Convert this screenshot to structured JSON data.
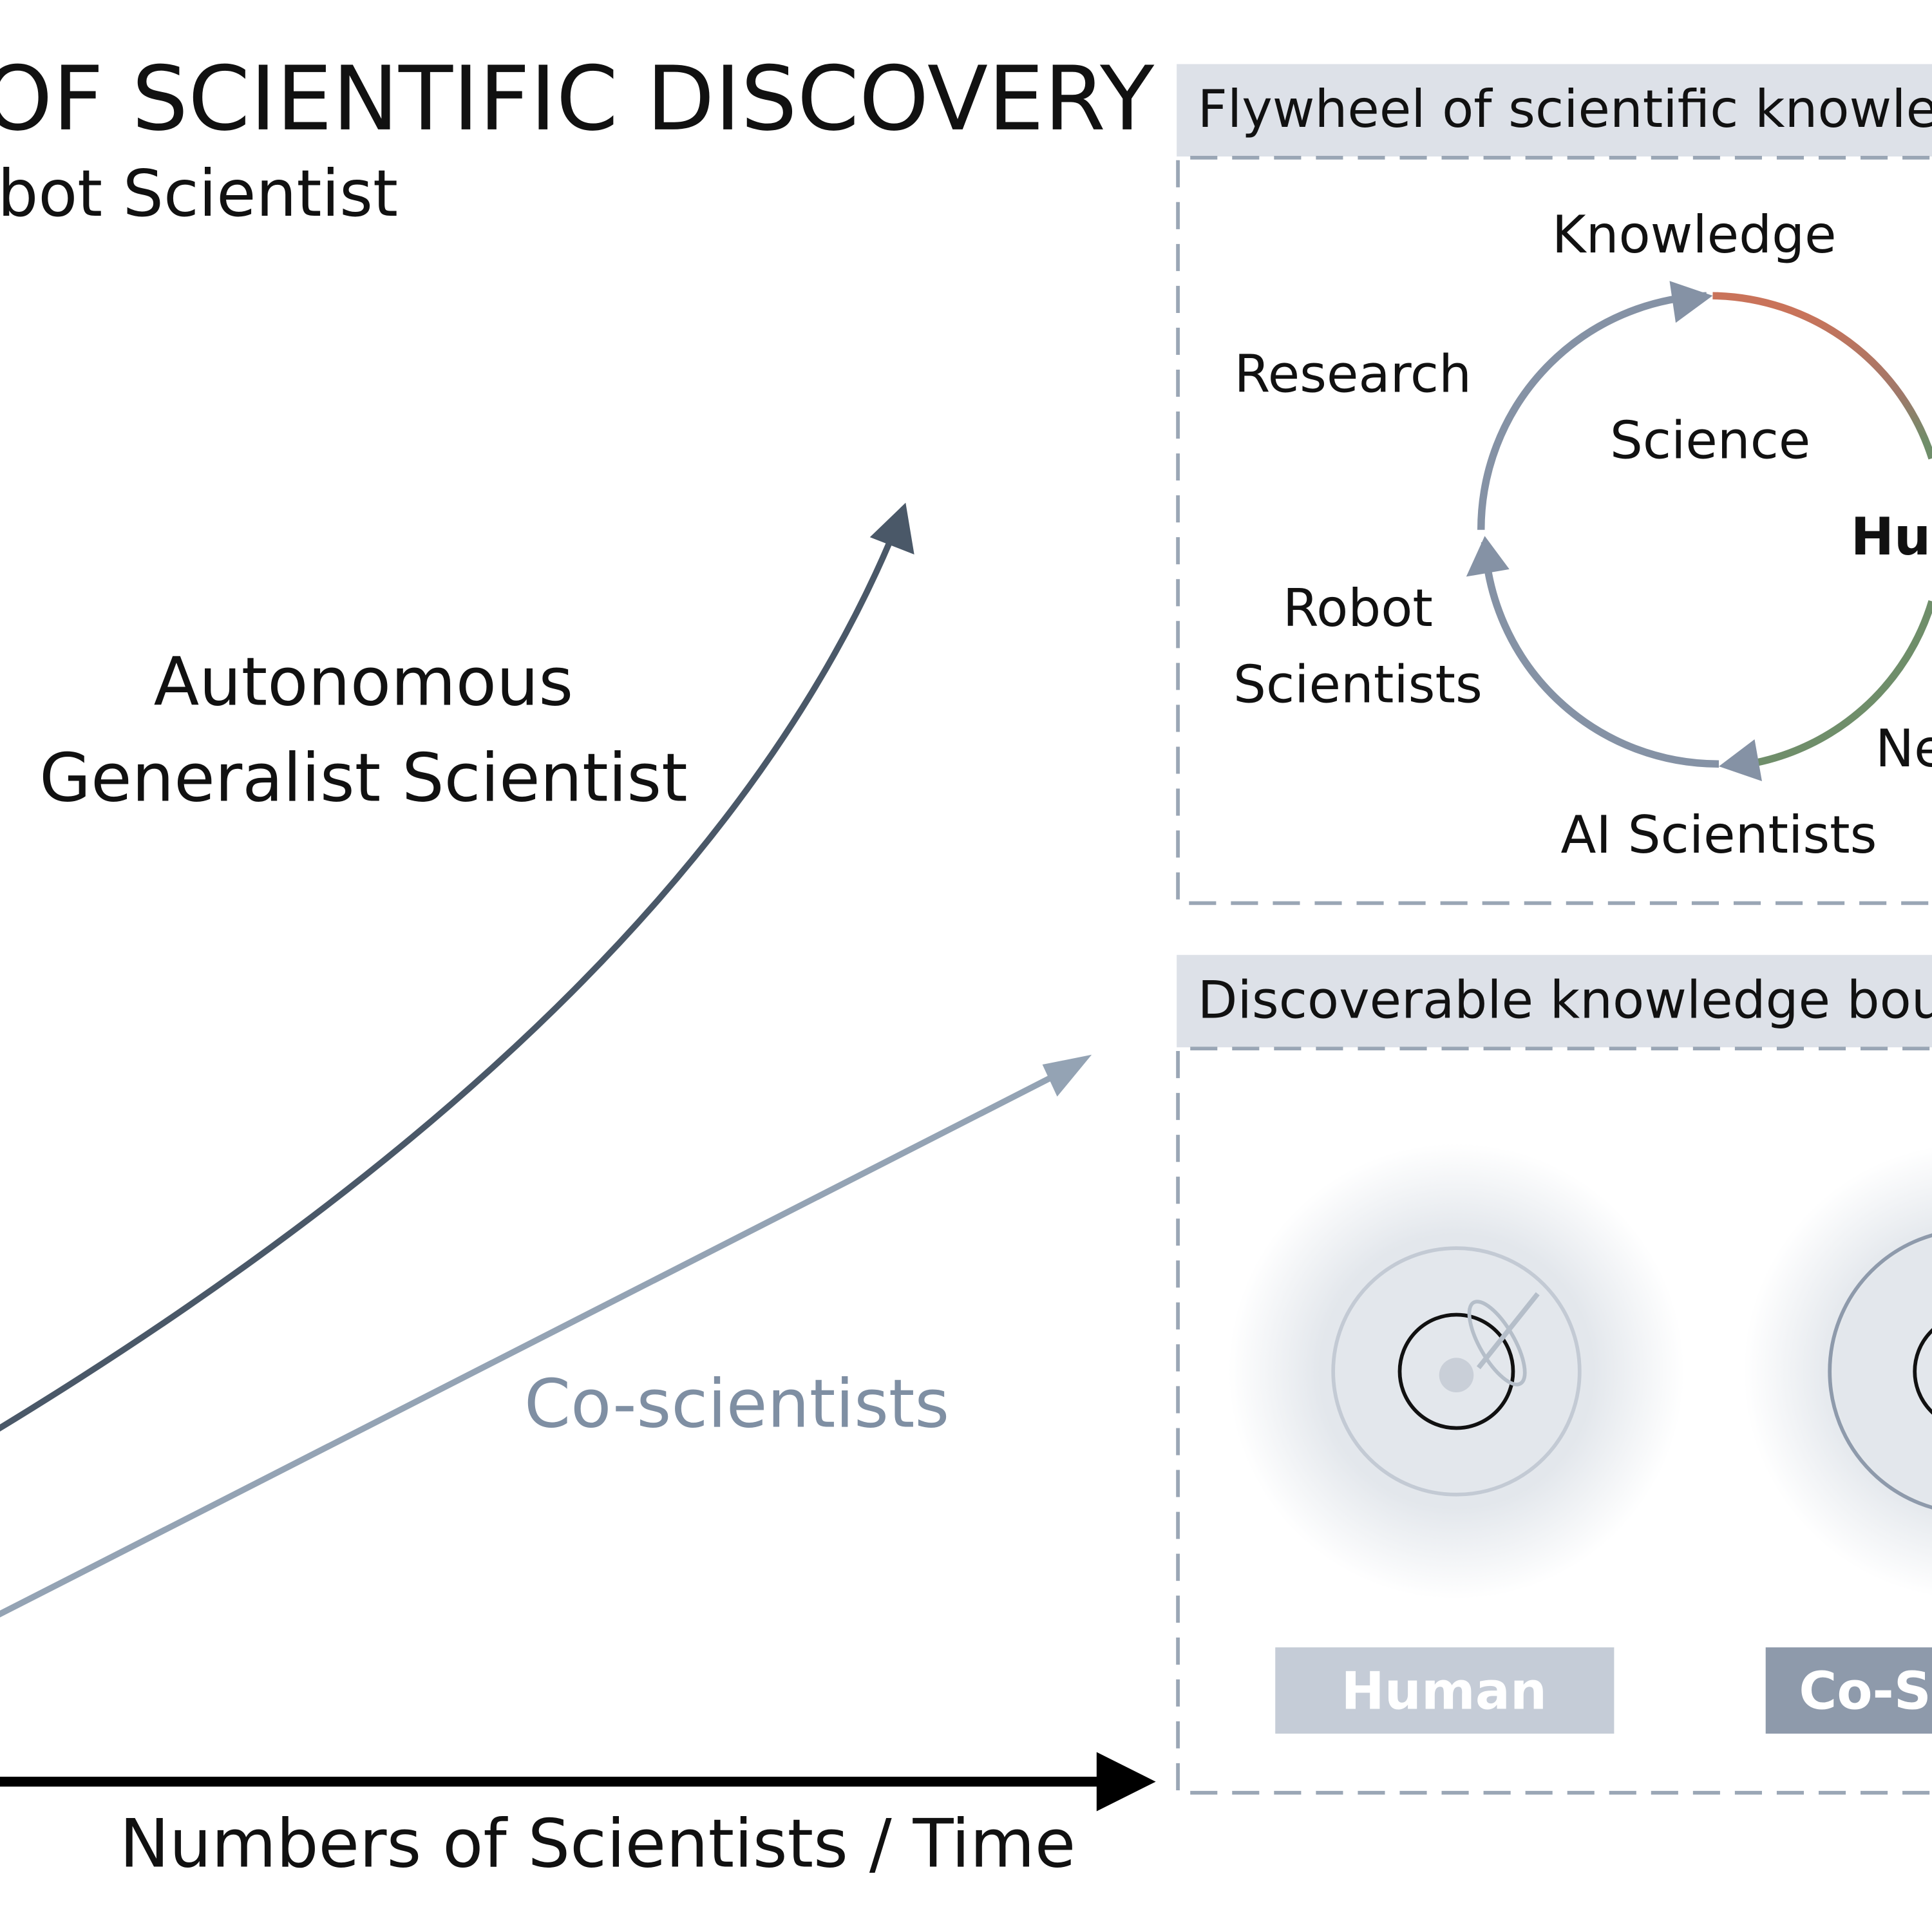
{
  "header": {
    "title": "OF SCIENTIFIC DISCOVERY",
    "subtitle": "bot Scientist"
  },
  "growth_chart": {
    "autonomous_label": [
      "Autonomous",
      "Generalist Scientist"
    ],
    "coscientist_label": "Co-scientists",
    "x_axis_label": "Numbers of Scientists / Time"
  },
  "flywheel_panel": {
    "title": "Flywheel of scientific knowle",
    "labels": {
      "top": "Knowledge",
      "upper_left": "Research",
      "center": "Science",
      "right": "Hu",
      "left": [
        "Robot",
        "Scientists"
      ],
      "lower_right": "Ne",
      "bottom": "AI Scientists"
    }
  },
  "boundary_panel": {
    "title": "Discoverable knowledge bou",
    "items": [
      "Human",
      "Co-Sc"
    ]
  }
}
